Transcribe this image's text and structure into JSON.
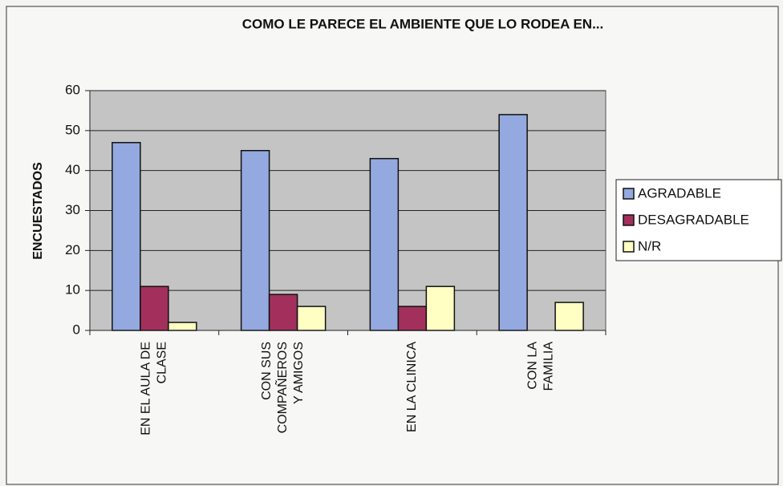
{
  "chart_data": {
    "type": "bar",
    "title": "COMO LE PARECE EL AMBIENTE QUE LO RODEA EN...",
    "y_label": "ENCUESTADOS",
    "categories": [
      "EN EL AULA DE\nCLASE",
      "CON SUS\nCOMPAÑEROS\nY AMIGOS",
      "EN LA CLINICA",
      "CON LA\nFAMILIA"
    ],
    "series": [
      {
        "name": "AGRADABLE",
        "color": "#93a9e0",
        "values": [
          47,
          45,
          43,
          54
        ]
      },
      {
        "name": "DESAGRADABLE",
        "color": "#a3305c",
        "values": [
          11,
          9,
          6,
          0
        ]
      },
      {
        "name": "N/R",
        "color": "#ffffc4",
        "values": [
          2,
          6,
          11,
          7
        ]
      }
    ],
    "ylim": [
      0,
      60
    ],
    "yticks": [
      0,
      10,
      20,
      30,
      40,
      50,
      60
    ],
    "grid": true,
    "legend": "right"
  }
}
